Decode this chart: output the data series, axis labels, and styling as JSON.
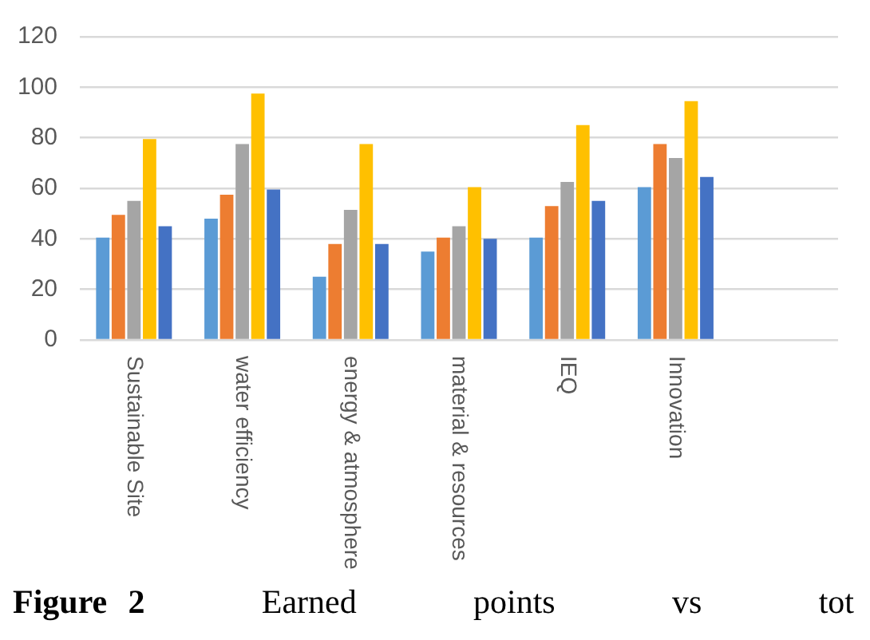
{
  "chart_data": {
    "type": "bar",
    "categories": [
      "Sustainable Site",
      "water efficiency",
      "energy & atmosphere",
      "material & resources",
      "IEQ",
      "Innovation",
      null
    ],
    "series": [
      {
        "color": "#5b9bd5",
        "values": [
          40.5,
          48,
          25,
          35,
          40.5,
          60.5,
          null
        ]
      },
      {
        "color": "#ed7d31",
        "values": [
          49.5,
          57.5,
          38,
          40.5,
          53,
          77.5,
          null
        ]
      },
      {
        "color": "#a5a5a5",
        "values": [
          55,
          77.5,
          51.5,
          45,
          62.5,
          72,
          null
        ]
      },
      {
        "color": "#ffc000",
        "values": [
          79.5,
          97.5,
          77.5,
          60.5,
          85,
          94.5,
          null
        ]
      },
      {
        "color": "#4472c4",
        "values": [
          45,
          59.5,
          38,
          40,
          55,
          64.5,
          null
        ]
      }
    ],
    "ylim": [
      0,
      120
    ],
    "yticks": [
      0,
      20,
      40,
      60,
      80,
      100,
      120
    ],
    "grid": "y",
    "legend": false,
    "annotations": [
      "Figure 2 Earned points vs tot"
    ]
  }
}
